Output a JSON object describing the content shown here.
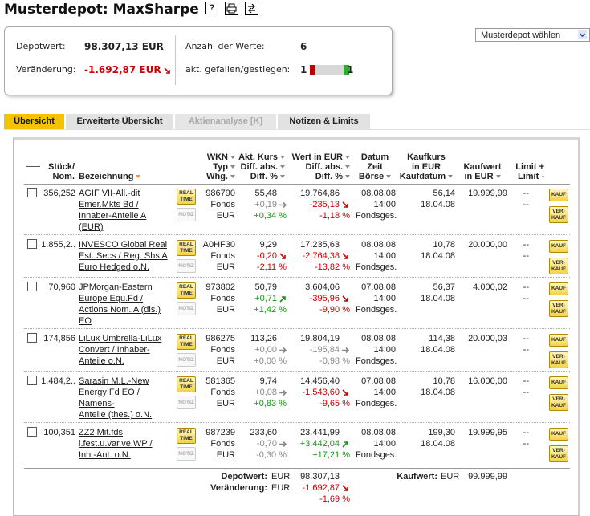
{
  "header": {
    "title": "Musterdepot: MaxSharpe",
    "help_icon": "?"
  },
  "summary": {
    "depotwert_label": "Depotwert:",
    "depotwert": "98.307,13 EUR",
    "veraenderung_label": "Veränderung:",
    "veraenderung": "-1.692,87 EUR",
    "veraenderung_trend": "down",
    "anzahl_label": "Anzahl der Werte:",
    "anzahl": "6",
    "akt_label": "akt. gefallen/gestiegen:",
    "gefallen": "1",
    "gestiegen": "1"
  },
  "select": "Musterdepot wählen",
  "tabs": [
    {
      "label": "Übersicht",
      "state": "active"
    },
    {
      "label": "Erweiterte Übersicht",
      "state": "normal"
    },
    {
      "label": "Aktienanalyse [K]",
      "state": "disabled"
    },
    {
      "label": "Notizen & Limits",
      "state": "normal"
    }
  ],
  "table": {
    "columns": [
      {
        "lines": [
          "Stück/",
          "Nom."
        ],
        "sort": [
          false,
          false
        ]
      },
      {
        "lines": [
          "Bezeichnung"
        ],
        "sort": [
          "active"
        ]
      },
      {
        "lines": [
          "WKN",
          "Typ",
          "Whg."
        ],
        "sort": [
          true,
          true,
          true
        ]
      },
      {
        "lines": [
          "Akt. Kurs",
          "Diff. abs.",
          "Diff. %"
        ],
        "sort": [
          true,
          true,
          true
        ]
      },
      {
        "lines": [
          "Wert in EUR",
          "Diff. abs.",
          "Diff. %"
        ],
        "sort": [
          true,
          true,
          true
        ]
      },
      {
        "lines": [
          "Datum",
          "Zeit",
          "Börse"
        ],
        "sort": [
          false,
          false,
          true
        ]
      },
      {
        "lines": [
          "Kaufkurs",
          "in EUR",
          "Kaufdatum"
        ],
        "sort": [
          false,
          false,
          true
        ]
      },
      {
        "lines": [
          "Kaufwert",
          "in EUR"
        ],
        "sort": [
          false,
          true
        ]
      },
      {
        "lines": [
          "Limit +",
          "Limit -"
        ],
        "sort": [
          false,
          false
        ]
      }
    ],
    "buttons": {
      "realtime": [
        "REAL",
        "TIME"
      ],
      "notiz": "NOTIZ",
      "kauf": "KAUF",
      "verkauf": [
        "VER-",
        "KAUF"
      ]
    },
    "rows": [
      {
        "stueck": "356,252",
        "name": [
          "AGIF VII-All.-dit",
          "Emer.Mkts Bd /",
          "Inhaber-Anteile A",
          "(EUR)"
        ],
        "wkn": "986790",
        "typ": "Fonds",
        "whg": "EUR",
        "kurs": "55,48",
        "kurs_diff": "+0,19",
        "kurs_diff_trend": "flat",
        "kurs_pct": "+0,34 %",
        "kurs_pct_trend": "up",
        "wert": "19.764,86",
        "wert_diff": "-235,13",
        "wert_pct": "-1,18 %",
        "wert_trend": "down",
        "datum": "08.08.08",
        "zeit": "14:00",
        "boerse": "Fondsges.",
        "kaufkurs": "56,14",
        "kaufdatum": "18.04.08",
        "kaufwert": "19.999,99",
        "limits": [
          "--",
          "--"
        ]
      },
      {
        "stueck": "1.855,2..",
        "name": [
          "INVESCO Global Real",
          "Est. Secs / Reg. Shs A",
          "Euro Hedged o.N."
        ],
        "wkn": "A0HF30",
        "typ": "Fonds",
        "whg": "EUR",
        "kurs": "9,29",
        "kurs_diff": "-0,20",
        "kurs_diff_trend": "down",
        "kurs_pct": "-2,11 %",
        "kurs_pct_trend": "down",
        "wert": "17.235,63",
        "wert_diff": "-2.764,38",
        "wert_pct": "-13,82 %",
        "wert_trend": "down",
        "datum": "08.08.08",
        "zeit": "14:00",
        "boerse": "Fondsges.",
        "kaufkurs": "10,78",
        "kaufdatum": "18.04.08",
        "kaufwert": "20.000,00",
        "limits": [
          "--",
          "--"
        ]
      },
      {
        "stueck": "70,960",
        "name": [
          "JPMorgan-Eastern",
          "Europe Equ.Fd /",
          "Actions Nom. A (dis.)",
          "EO"
        ],
        "wkn": "973802",
        "typ": "Fonds",
        "whg": "EUR",
        "kurs": "50,79",
        "kurs_diff": "+0,71",
        "kurs_diff_trend": "up",
        "kurs_pct": "+1,42 %",
        "kurs_pct_trend": "up",
        "wert": "3.604,06",
        "wert_diff": "-395,96",
        "wert_pct": "-9,90 %",
        "wert_trend": "down",
        "datum": "07.08.08",
        "zeit": "14:00",
        "boerse": "Fondsges.",
        "kaufkurs": "56,37",
        "kaufdatum": "18.04.08",
        "kaufwert": "4.000,02",
        "limits": [
          "--",
          "--"
        ]
      },
      {
        "stueck": "174,856",
        "name": [
          "LiLux Umbrella-LiLux",
          "Convert / Inhaber-",
          "Anteile o.N."
        ],
        "wkn": "986275",
        "typ": "Fonds",
        "whg": "EUR",
        "kurs": "113,26",
        "kurs_diff": "+0,00",
        "kurs_diff_trend": "flat",
        "kurs_pct": "+0,00 %",
        "kurs_pct_trend": "flat",
        "wert": "19.804,19",
        "wert_diff": "-195,84",
        "wert_pct": "-0,98 %",
        "wert_trend": "flat",
        "datum": "08.08.08",
        "zeit": "14:00",
        "boerse": "Fondsges.",
        "kaufkurs": "114,38",
        "kaufdatum": "18.04.08",
        "kaufwert": "20.000,03",
        "limits": [
          "--",
          "--"
        ]
      },
      {
        "stueck": "1.484,2..",
        "name": [
          "Sarasin M.L.-New",
          "Energy Fd EO /",
          "Namens-",
          "Anteile (thes.) o.N."
        ],
        "wkn": "581365",
        "typ": "Fonds",
        "whg": "EUR",
        "kurs": "9,74",
        "kurs_diff": "+0,08",
        "kurs_diff_trend": "flat",
        "kurs_pct": "+0,83 %",
        "kurs_pct_trend": "up",
        "wert": "14.456,40",
        "wert_diff": "-1.543,60",
        "wert_pct": "-9,65 %",
        "wert_trend": "down",
        "datum": "07.08.08",
        "zeit": "14:00",
        "boerse": "Fondsges.",
        "kaufkurs": "10,78",
        "kaufdatum": "18.04.08",
        "kaufwert": "16.000,00",
        "limits": [
          "--",
          "--"
        ]
      },
      {
        "stueck": "100,351",
        "name": [
          "ZZ2 Mit.fds",
          "i.fest.u.var.ve.WP /",
          "Inh.-Ant. o.N."
        ],
        "wkn": "987239",
        "typ": "Fonds",
        "whg": "EUR",
        "kurs": "233,60",
        "kurs_diff": "-0,70",
        "kurs_diff_trend": "flat",
        "kurs_pct": "-0,30 %",
        "kurs_pct_trend": "flat",
        "wert": "23.441,99",
        "wert_diff": "+3.442,04",
        "wert_pct": "+17,21 %",
        "wert_trend": "up",
        "datum": "08.08.08",
        "zeit": "14:00",
        "boerse": "Fondsges.",
        "kaufkurs": "199,30",
        "kaufdatum": "18.04.08",
        "kaufwert": "19.999,95",
        "limits": [
          "--",
          "--"
        ]
      }
    ],
    "footer": {
      "depotwert_label": "Depotwert:",
      "depotwert_currency": "EUR",
      "depotwert": "98.307,13",
      "veraenderung_label": "Veränderung:",
      "veraenderung_currency": "EUR",
      "veraenderung": "-1.692,87",
      "veraenderung_trend": "down",
      "veraenderung_pct": "-1,69 %",
      "kaufwert_label": "Kaufwert:",
      "kaufwert_currency": "EUR",
      "kaufwert": "99.999,99"
    }
  }
}
